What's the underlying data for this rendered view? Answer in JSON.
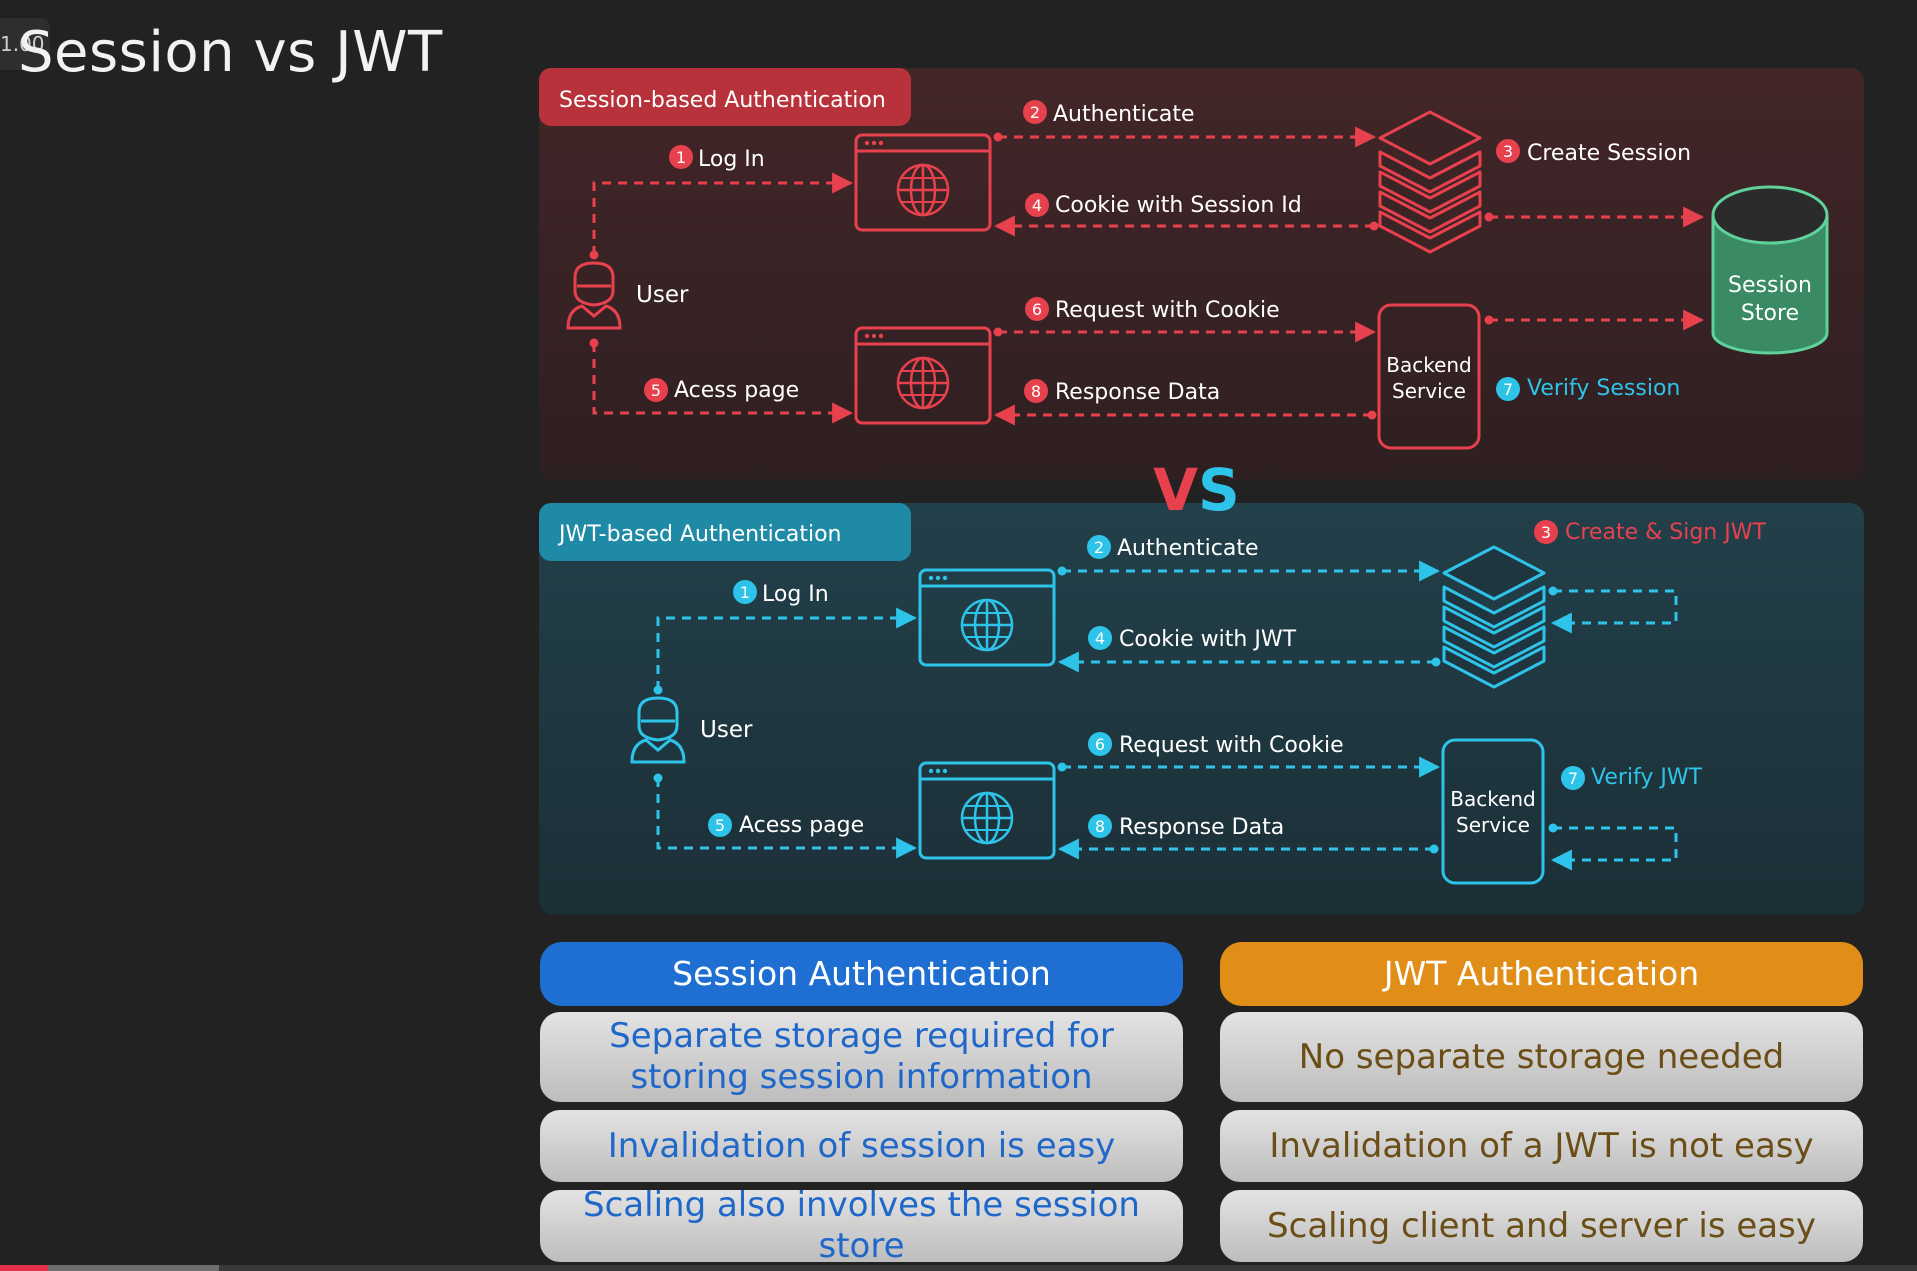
{
  "slide": {
    "title": "Session vs JWT",
    "speed_badge": "1.00"
  },
  "player": {
    "progress_percent": 2.5,
    "buffered_percent": 11.4
  },
  "colors": {
    "background": "#222222",
    "session_panel": "#3a2426",
    "session_accent": "#e8414e",
    "jwt_panel": "#1f3640",
    "jwt_accent": "#2ec4ea",
    "session_store": "#3a8a63",
    "blue_header": "#1e6fd1",
    "orange_header": "#e08e18",
    "session_text": "#1f67c8",
    "jwt_text": "#6b4d16"
  },
  "session_diagram": {
    "header": "Session-based Authentication",
    "user_label": "User",
    "steps": {
      "s1": {
        "num": "1",
        "label": "Log In"
      },
      "s2": {
        "num": "2",
        "label": "Authenticate"
      },
      "s3": {
        "num": "3",
        "label": "Create Session"
      },
      "s4": {
        "num": "4",
        "label": "Cookie with Session Id"
      },
      "s5": {
        "num": "5",
        "label": "Acess page"
      },
      "s6": {
        "num": "6",
        "label": "Request with Cookie"
      },
      "s7": {
        "num": "7",
        "label": "Verify Session"
      },
      "s8": {
        "num": "8",
        "label": "Response Data"
      }
    },
    "backend": {
      "line1": "Backend",
      "line2": "Service"
    },
    "store": {
      "line1": "Session",
      "line2": "Store"
    }
  },
  "vs": {
    "v": "V",
    "s": "S"
  },
  "jwt_diagram": {
    "header": "JWT-based Authentication",
    "user_label": "User",
    "steps": {
      "s1": {
        "num": "1",
        "label": "Log In"
      },
      "s2": {
        "num": "2",
        "label": "Authenticate"
      },
      "s3": {
        "num": "3",
        "label": "Create & Sign JWT"
      },
      "s4": {
        "num": "4",
        "label": "Cookie with JWT"
      },
      "s5": {
        "num": "5",
        "label": "Acess page"
      },
      "s6": {
        "num": "6",
        "label": "Request with Cookie"
      },
      "s7": {
        "num": "7",
        "label": "Verify JWT"
      },
      "s8": {
        "num": "8",
        "label": "Response Data"
      }
    },
    "backend": {
      "line1": "Backend",
      "line2": "Service"
    }
  },
  "comparison": {
    "session": {
      "header": "Session Authentication",
      "rows": [
        "Separate storage required for storing session information",
        "Invalidation of session is easy",
        "Scaling also involves the session store"
      ]
    },
    "jwt": {
      "header": "JWT Authentication",
      "rows": [
        "No separate storage needed",
        "Invalidation of a JWT is not easy",
        "Scaling client and server is easy"
      ]
    }
  }
}
